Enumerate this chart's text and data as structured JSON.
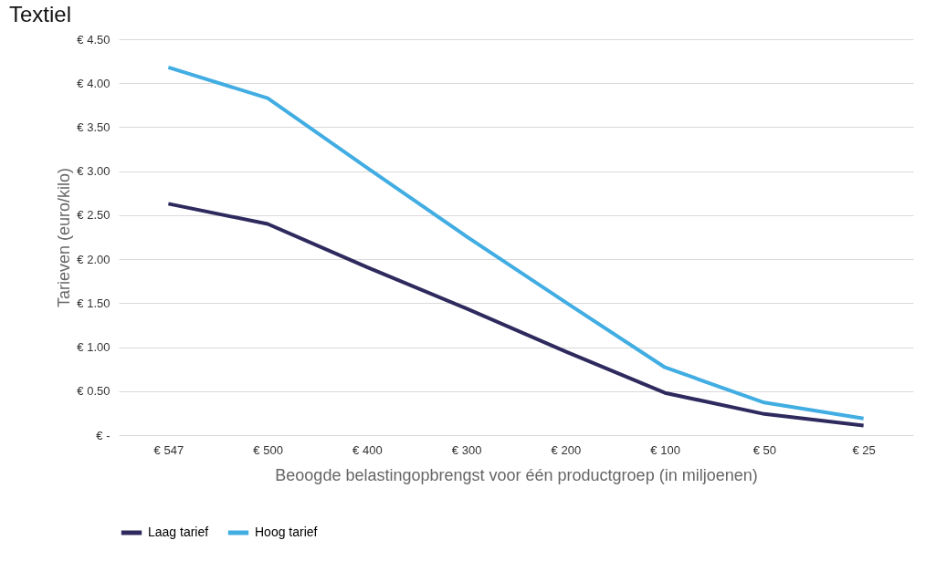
{
  "chart_data": {
    "type": "line",
    "title": "Textiel",
    "xlabel": "Beoogde belastingopbrengst voor één productgroep (in miljoenen)",
    "ylabel": "Tarieven (euro/kilo)",
    "categories": [
      "€ 547",
      "€ 500",
      "€ 400",
      "€ 300",
      "€ 200",
      "€ 100",
      "€ 50",
      "€ 25"
    ],
    "series": [
      {
        "name": "Laag tarief",
        "color": "#2e2a5e",
        "values": [
          2.63,
          2.4,
          1.91,
          1.44,
          0.95,
          0.48,
          0.24,
          0.11
        ]
      },
      {
        "name": "Hoog tarief",
        "color": "#41ade2",
        "values": [
          4.18,
          3.83,
          3.04,
          2.26,
          1.51,
          0.77,
          0.37,
          0.19
        ]
      }
    ],
    "ylim": [
      0,
      4.5
    ],
    "yticks": [
      {
        "value": 0,
        "label": "€ -"
      },
      {
        "value": 0.5,
        "label": "€ 0.50"
      },
      {
        "value": 1,
        "label": "€ 1.00"
      },
      {
        "value": 1.5,
        "label": "€ 1.50"
      },
      {
        "value": 2,
        "label": "€ 2.00"
      },
      {
        "value": 2.5,
        "label": "€ 2.50"
      },
      {
        "value": 3,
        "label": "€ 3.00"
      },
      {
        "value": 3.5,
        "label": "€ 3.50"
      },
      {
        "value": 4,
        "label": "€ 4.00"
      },
      {
        "value": 4.5,
        "label": "€ 4.50"
      }
    ],
    "grid": "y",
    "legend": "bottom",
    "marker": "none",
    "line_style": "solid"
  }
}
